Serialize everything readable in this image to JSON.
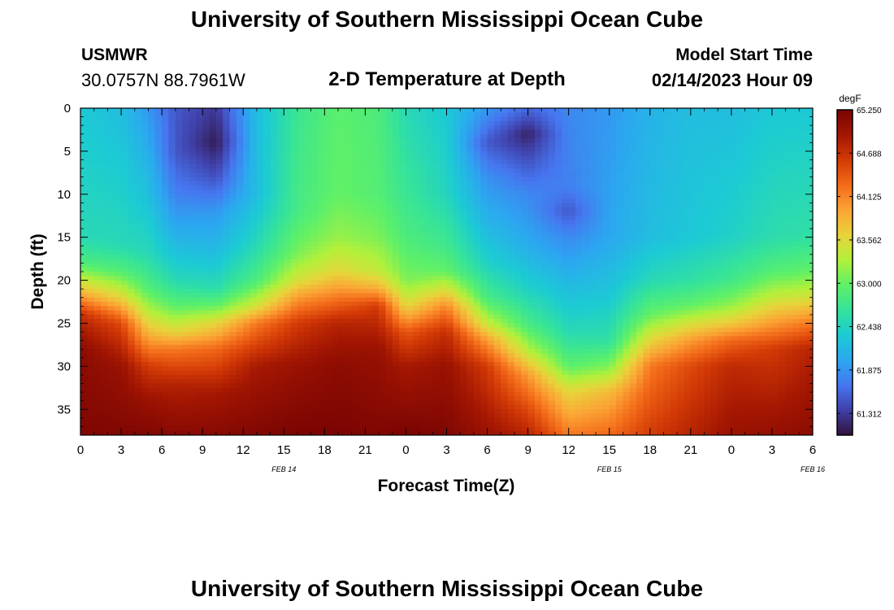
{
  "header": {
    "title": "University of Southern Mississippi Ocean Cube",
    "station": "USMWR",
    "location": "30.0757N  88.7961W",
    "subtitle": "2-D Temperature at Depth",
    "model_label": "Model Start Time",
    "model_time": "02/14/2023 Hour 09"
  },
  "footer": {
    "title": "University of Southern Mississippi Ocean Cube"
  },
  "chart_data": {
    "type": "heatmap",
    "xlabel": "Forecast Time(Z)",
    "ylabel": "Depth (ft)",
    "x_tick_labels": [
      "0",
      "3",
      "6",
      "9",
      "12",
      "15",
      "18",
      "21",
      "0",
      "3",
      "6",
      "9",
      "12",
      "15",
      "18",
      "21",
      "0",
      "3",
      "6"
    ],
    "date_labels": [
      {
        "text": "FEB 14",
        "at_hour": 15
      },
      {
        "text": "FEB 15",
        "at_hour": 39
      },
      {
        "text": "FEB 16",
        "at_hour": 54
      }
    ],
    "x_hours": [
      0,
      54
    ],
    "ylim": [
      0,
      38
    ],
    "y_ticks": [
      0,
      5,
      10,
      15,
      20,
      25,
      30,
      35
    ],
    "colorbar": {
      "unit": "degF",
      "vmin": 61.03,
      "vmax": 65.25,
      "tick_values": [
        65.25,
        64.688,
        64.125,
        63.562,
        63.0,
        62.438,
        61.875,
        61.312
      ],
      "tick_labels": [
        "65.250",
        "64.688",
        "64.125",
        "63.562",
        "63.000",
        "62.438",
        "61.875",
        "61.312"
      ],
      "colors": [
        "#30123b",
        "#4040a8",
        "#4676f0",
        "#2ba8f0",
        "#1ccbd3",
        "#35e39a",
        "#5ef068",
        "#b2f03a",
        "#e8d33a",
        "#fba435",
        "#f36b19",
        "#d33a06",
        "#a31602",
        "#7a0403"
      ]
    },
    "temperature_profiles": [
      {
        "hour": 0,
        "values": [
          [
            0,
            62.3
          ],
          [
            15,
            62.5
          ],
          [
            18,
            62.85
          ],
          [
            21,
            63.7
          ],
          [
            24,
            64.7
          ],
          [
            28,
            65.1
          ],
          [
            38,
            65.2
          ]
        ]
      },
      {
        "hour": 3,
        "values": [
          [
            0,
            62.2
          ],
          [
            16,
            62.5
          ],
          [
            19,
            62.9
          ],
          [
            22,
            63.6
          ],
          [
            25,
            64.5
          ],
          [
            30,
            65.0
          ],
          [
            38,
            65.2
          ]
        ]
      },
      {
        "hour": 5,
        "values": [
          [
            0,
            61.9
          ],
          [
            12,
            62.3
          ],
          [
            17,
            62.5
          ],
          [
            21,
            62.9
          ],
          [
            24,
            63.4
          ],
          [
            27,
            64.0
          ],
          [
            30,
            64.6
          ],
          [
            34,
            65.0
          ],
          [
            38,
            65.2
          ]
        ]
      },
      {
        "hour": 7,
        "values": [
          [
            0,
            61.5
          ],
          [
            5,
            61.5
          ],
          [
            10,
            61.75
          ],
          [
            15,
            62.1
          ],
          [
            20,
            62.5
          ],
          [
            23,
            62.95
          ],
          [
            26,
            63.6
          ],
          [
            28,
            64.2
          ],
          [
            32,
            64.8
          ],
          [
            38,
            65.15
          ]
        ]
      },
      {
        "hour": 10,
        "values": [
          [
            0,
            61.3
          ],
          [
            4,
            61.1
          ],
          [
            8,
            61.45
          ],
          [
            12,
            61.9
          ],
          [
            17,
            62.2
          ],
          [
            21,
            62.55
          ],
          [
            23,
            63.0
          ],
          [
            25,
            63.6
          ],
          [
            28,
            64.3
          ],
          [
            33,
            64.9
          ],
          [
            38,
            65.15
          ]
        ]
      },
      {
        "hour": 13,
        "values": [
          [
            0,
            62.2
          ],
          [
            10,
            62.2
          ],
          [
            16,
            62.5
          ],
          [
            20,
            62.85
          ],
          [
            23,
            63.5
          ],
          [
            25,
            64.2
          ],
          [
            30,
            64.9
          ],
          [
            38,
            65.2
          ]
        ]
      },
      {
        "hour": 16,
        "values": [
          [
            0,
            62.7
          ],
          [
            12,
            62.8
          ],
          [
            17,
            63.1
          ],
          [
            20,
            63.5
          ],
          [
            22,
            64.0
          ],
          [
            25,
            64.6
          ],
          [
            30,
            65.0
          ],
          [
            38,
            65.25
          ]
        ]
      },
      {
        "hour": 19,
        "values": [
          [
            0,
            62.95
          ],
          [
            10,
            63.0
          ],
          [
            15,
            63.2
          ],
          [
            19,
            63.6
          ],
          [
            22,
            64.2
          ],
          [
            25,
            64.8
          ],
          [
            30,
            65.1
          ],
          [
            38,
            65.25
          ]
        ]
      },
      {
        "hour": 22,
        "values": [
          [
            0,
            62.85
          ],
          [
            10,
            62.9
          ],
          [
            15,
            63.1
          ],
          [
            19,
            63.4
          ],
          [
            21,
            63.9
          ],
          [
            23,
            64.6
          ],
          [
            28,
            65.0
          ],
          [
            38,
            65.2
          ]
        ]
      },
      {
        "hour": 24,
        "values": [
          [
            0,
            62.5
          ],
          [
            10,
            62.7
          ],
          [
            15,
            62.85
          ],
          [
            20,
            63.1
          ],
          [
            23,
            63.6
          ],
          [
            26,
            64.4
          ],
          [
            30,
            64.9
          ],
          [
            38,
            65.25
          ]
        ]
      },
      {
        "hour": 27,
        "values": [
          [
            0,
            62.3
          ],
          [
            10,
            62.45
          ],
          [
            16,
            62.75
          ],
          [
            19,
            63.0
          ],
          [
            21,
            63.5
          ],
          [
            23,
            64.1
          ],
          [
            26,
            64.7
          ],
          [
            30,
            65.0
          ],
          [
            38,
            65.2
          ]
        ]
      },
      {
        "hour": 30,
        "values": [
          [
            0,
            61.9
          ],
          [
            4,
            61.5
          ],
          [
            8,
            61.85
          ],
          [
            13,
            62.1
          ],
          [
            18,
            62.4
          ],
          [
            22,
            62.8
          ],
          [
            25,
            63.4
          ],
          [
            27,
            64.0
          ],
          [
            30,
            64.6
          ],
          [
            38,
            65.0
          ]
        ]
      },
      {
        "hour": 33,
        "values": [
          [
            0,
            61.6
          ],
          [
            3,
            61.15
          ],
          [
            6,
            61.45
          ],
          [
            10,
            61.8
          ],
          [
            16,
            62.05
          ],
          [
            21,
            62.4
          ],
          [
            25,
            62.8
          ],
          [
            28,
            63.3
          ],
          [
            31,
            64.0
          ],
          [
            35,
            64.5
          ],
          [
            38,
            64.8
          ]
        ]
      },
      {
        "hour": 36,
        "values": [
          [
            0,
            61.8
          ],
          [
            9,
            61.75
          ],
          [
            12,
            61.5
          ],
          [
            15,
            61.8
          ],
          [
            21,
            62.2
          ],
          [
            26,
            62.5
          ],
          [
            30,
            62.95
          ],
          [
            33,
            63.6
          ],
          [
            38,
            64.2
          ]
        ]
      },
      {
        "hour": 39,
        "values": [
          [
            0,
            61.9
          ],
          [
            15,
            62.0
          ],
          [
            22,
            62.3
          ],
          [
            27,
            62.6
          ],
          [
            30,
            63.1
          ],
          [
            33,
            63.8
          ],
          [
            38,
            64.3
          ]
        ]
      },
      {
        "hour": 42,
        "values": [
          [
            0,
            62.1
          ],
          [
            15,
            62.2
          ],
          [
            20,
            62.5
          ],
          [
            24,
            63.0
          ],
          [
            27,
            63.6
          ],
          [
            30,
            64.2
          ],
          [
            38,
            64.6
          ]
        ]
      },
      {
        "hour": 45,
        "values": [
          [
            0,
            62.2
          ],
          [
            15,
            62.3
          ],
          [
            20,
            62.6
          ],
          [
            23,
            63.0
          ],
          [
            25,
            63.5
          ],
          [
            27,
            64.0
          ],
          [
            30,
            64.5
          ],
          [
            38,
            64.8
          ]
        ]
      },
      {
        "hour": 48,
        "values": [
          [
            0,
            62.2
          ],
          [
            15,
            62.4
          ],
          [
            20,
            62.75
          ],
          [
            23,
            63.2
          ],
          [
            25,
            63.7
          ],
          [
            27,
            64.3
          ],
          [
            30,
            64.75
          ],
          [
            38,
            65.0
          ]
        ]
      },
      {
        "hour": 51,
        "values": [
          [
            0,
            62.3
          ],
          [
            15,
            62.55
          ],
          [
            19,
            62.9
          ],
          [
            22,
            63.4
          ],
          [
            25,
            64.0
          ],
          [
            28,
            64.6
          ],
          [
            38,
            65.05
          ]
        ]
      },
      {
        "hour": 54,
        "values": [
          [
            0,
            62.3
          ],
          [
            15,
            62.6
          ],
          [
            19,
            63.0
          ],
          [
            22,
            63.5
          ],
          [
            25,
            64.2
          ],
          [
            28,
            64.8
          ],
          [
            38,
            65.1
          ]
        ]
      }
    ]
  }
}
